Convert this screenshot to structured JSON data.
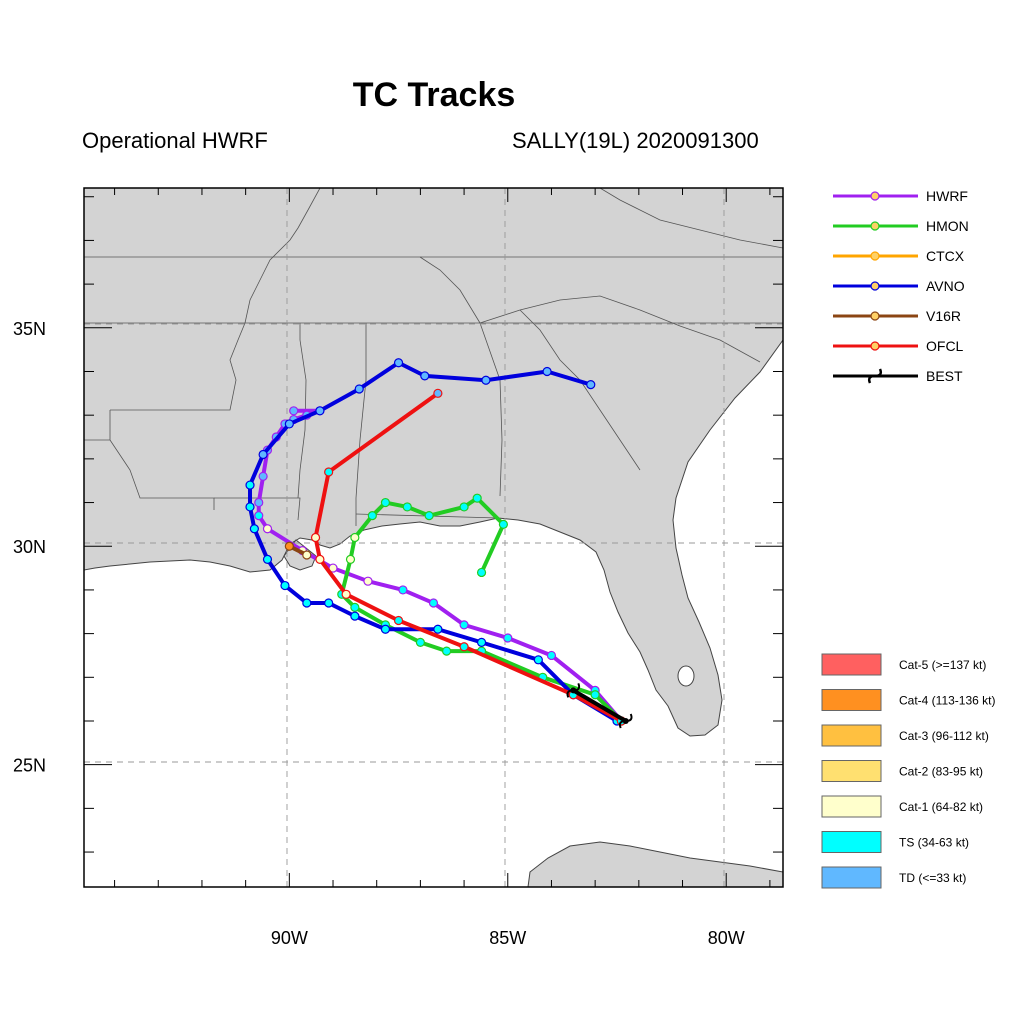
{
  "title": "TC Tracks",
  "subtitle_left": "Operational HWRF",
  "subtitle_right": "SALLY(19L) 2020091300",
  "axes": {
    "x_ticks": [
      {
        "lon": -90,
        "label": "90W"
      },
      {
        "lon": -85,
        "label": "85W"
      },
      {
        "lon": -80,
        "label": "80W"
      }
    ],
    "y_ticks": [
      {
        "lat": 35,
        "label": "35N"
      },
      {
        "lat": 30,
        "label": "30N"
      },
      {
        "lat": 25,
        "label": "25N"
      }
    ],
    "lon_range": [
      -94.7,
      -78.7
    ],
    "lat_range": [
      22.2,
      38.2
    ]
  },
  "colors": {
    "land": "#d3d3d3",
    "ocean": "#ffffff",
    "border": "#555555",
    "grid": "#999999"
  },
  "models": [
    {
      "name": "HWRF",
      "color": "#a020f0"
    },
    {
      "name": "HMON",
      "color": "#22cc22"
    },
    {
      "name": "CTCX",
      "color": "#ffa500"
    },
    {
      "name": "AVNO",
      "color": "#0000dd"
    },
    {
      "name": "V16R",
      "color": "#8b4513"
    },
    {
      "name": "OFCL",
      "color": "#ee1111"
    },
    {
      "name": "BEST",
      "color": "#000000"
    }
  ],
  "categories": [
    {
      "label": "Cat-5 (>=137 kt)",
      "color": "#ff6060"
    },
    {
      "label": "Cat-4 (113-136 kt)",
      "color": "#ff9020"
    },
    {
      "label": "Cat-3 (96-112 kt)",
      "color": "#ffc040"
    },
    {
      "label": "Cat-2 (83-95 kt)",
      "color": "#ffe070"
    },
    {
      "label": "Cat-1 (64-82 kt)",
      "color": "#ffffcc"
    },
    {
      "label": "TS (34-63 kt)",
      "color": "#00ffff"
    },
    {
      "label": "TD (<=33 kt)",
      "color": "#60b8ff"
    }
  ],
  "chart_data": {
    "type": "map-tracks",
    "tracks": [
      {
        "name": "HWRF",
        "points": [
          {
            "lon": -82.4,
            "lat": 26.0,
            "cat": "TS"
          },
          {
            "lon": -83.0,
            "lat": 26.7,
            "cat": "TS"
          },
          {
            "lon": -84.0,
            "lat": 27.5,
            "cat": "TS"
          },
          {
            "lon": -85.0,
            "lat": 27.9,
            "cat": "TS"
          },
          {
            "lon": -86.0,
            "lat": 28.2,
            "cat": "TS"
          },
          {
            "lon": -86.7,
            "lat": 28.7,
            "cat": "TS"
          },
          {
            "lon": -87.4,
            "lat": 29.0,
            "cat": "TS"
          },
          {
            "lon": -88.2,
            "lat": 29.2,
            "cat": "Cat-1"
          },
          {
            "lon": -89.0,
            "lat": 29.5,
            "cat": "Cat-1"
          },
          {
            "lon": -89.7,
            "lat": 29.9,
            "cat": "Cat-1"
          },
          {
            "lon": -90.5,
            "lat": 30.4,
            "cat": "Cat-1"
          },
          {
            "lon": -90.7,
            "lat": 30.7,
            "cat": "TS"
          },
          {
            "lon": -90.7,
            "lat": 31.0,
            "cat": "TD"
          },
          {
            "lon": -90.6,
            "lat": 31.6,
            "cat": "TD"
          },
          {
            "lon": -90.5,
            "lat": 32.2,
            "cat": "TD"
          },
          {
            "lon": -90.3,
            "lat": 32.5,
            "cat": "TD"
          },
          {
            "lon": -90.1,
            "lat": 32.8,
            "cat": "TD"
          },
          {
            "lon": -89.9,
            "lat": 32.9,
            "cat": "TD"
          },
          {
            "lon": -89.6,
            "lat": 33.0,
            "cat": "TD"
          },
          {
            "lon": -89.3,
            "lat": 33.1,
            "cat": "TD"
          },
          {
            "lon": -89.9,
            "lat": 33.1,
            "cat": "TD"
          }
        ]
      },
      {
        "name": "HMON",
        "points": [
          {
            "lon": -82.4,
            "lat": 26.0,
            "cat": "TS"
          },
          {
            "lon": -83.0,
            "lat": 26.6,
            "cat": "TS"
          },
          {
            "lon": -84.2,
            "lat": 27.0,
            "cat": "TS"
          },
          {
            "lon": -85.6,
            "lat": 27.6,
            "cat": "TS"
          },
          {
            "lon": -86.4,
            "lat": 27.6,
            "cat": "TS"
          },
          {
            "lon": -87.0,
            "lat": 27.8,
            "cat": "TS"
          },
          {
            "lon": -87.8,
            "lat": 28.2,
            "cat": "TS"
          },
          {
            "lon": -88.5,
            "lat": 28.6,
            "cat": "TS"
          },
          {
            "lon": -88.8,
            "lat": 28.9,
            "cat": "TS"
          },
          {
            "lon": -88.6,
            "lat": 29.7,
            "cat": "Cat-1"
          },
          {
            "lon": -88.5,
            "lat": 30.2,
            "cat": "Cat-1"
          },
          {
            "lon": -88.1,
            "lat": 30.7,
            "cat": "TS"
          },
          {
            "lon": -87.8,
            "lat": 31.0,
            "cat": "TS"
          },
          {
            "lon": -87.3,
            "lat": 30.9,
            "cat": "TS"
          },
          {
            "lon": -86.8,
            "lat": 30.7,
            "cat": "TS"
          },
          {
            "lon": -86.0,
            "lat": 30.9,
            "cat": "TS"
          },
          {
            "lon": -85.7,
            "lat": 31.1,
            "cat": "TS"
          },
          {
            "lon": -85.1,
            "lat": 30.5,
            "cat": "TS"
          },
          {
            "lon": -85.6,
            "lat": 29.4,
            "cat": "TS"
          }
        ]
      },
      {
        "name": "AVNO",
        "points": [
          {
            "lon": -82.5,
            "lat": 26.0,
            "cat": "TS"
          },
          {
            "lon": -83.5,
            "lat": 26.6,
            "cat": "TS"
          },
          {
            "lon": -84.3,
            "lat": 27.4,
            "cat": "TS"
          },
          {
            "lon": -85.6,
            "lat": 27.8,
            "cat": "TS"
          },
          {
            "lon": -86.6,
            "lat": 28.1,
            "cat": "TS"
          },
          {
            "lon": -87.8,
            "lat": 28.1,
            "cat": "TS"
          },
          {
            "lon": -88.5,
            "lat": 28.4,
            "cat": "TS"
          },
          {
            "lon": -89.1,
            "lat": 28.7,
            "cat": "TS"
          },
          {
            "lon": -89.6,
            "lat": 28.7,
            "cat": "TS"
          },
          {
            "lon": -90.1,
            "lat": 29.1,
            "cat": "TS"
          },
          {
            "lon": -90.5,
            "lat": 29.7,
            "cat": "TS"
          },
          {
            "lon": -90.8,
            "lat": 30.4,
            "cat": "TS"
          },
          {
            "lon": -90.9,
            "lat": 30.9,
            "cat": "TS"
          },
          {
            "lon": -90.9,
            "lat": 31.4,
            "cat": "TS"
          },
          {
            "lon": -90.6,
            "lat": 32.1,
            "cat": "TD"
          },
          {
            "lon": -90.0,
            "lat": 32.8,
            "cat": "TD"
          },
          {
            "lon": -89.3,
            "lat": 33.1,
            "cat": "TD"
          },
          {
            "lon": -88.4,
            "lat": 33.6,
            "cat": "TD"
          },
          {
            "lon": -87.5,
            "lat": 34.2,
            "cat": "TD"
          },
          {
            "lon": -86.9,
            "lat": 33.9,
            "cat": "TD"
          },
          {
            "lon": -85.5,
            "lat": 33.8,
            "cat": "TD"
          },
          {
            "lon": -84.1,
            "lat": 34.0,
            "cat": "TD"
          },
          {
            "lon": -83.1,
            "lat": 33.7,
            "cat": "TD"
          }
        ]
      },
      {
        "name": "OFCL",
        "points": [
          {
            "lon": -82.4,
            "lat": 26.0,
            "cat": "TS"
          },
          {
            "lon": -83.5,
            "lat": 26.6,
            "cat": "TS"
          },
          {
            "lon": -86.0,
            "lat": 27.7,
            "cat": "TS"
          },
          {
            "lon": -87.5,
            "lat": 28.3,
            "cat": "TS"
          },
          {
            "lon": -88.7,
            "lat": 28.9,
            "cat": "Cat-1"
          },
          {
            "lon": -89.3,
            "lat": 29.7,
            "cat": "Cat-1"
          },
          {
            "lon": -89.4,
            "lat": 30.2,
            "cat": "Cat-1"
          },
          {
            "lon": -89.1,
            "lat": 31.7,
            "cat": "TS"
          },
          {
            "lon": -86.6,
            "lat": 33.5,
            "cat": "TD"
          }
        ]
      },
      {
        "name": "V16R",
        "points": [
          {
            "lon": -89.6,
            "lat": 29.8,
            "cat": "Cat-1"
          },
          {
            "lon": -90.0,
            "lat": 30.0,
            "cat": "Cat-4"
          }
        ]
      },
      {
        "name": "BEST",
        "points": [
          {
            "lon": -82.3,
            "lat": 26.0,
            "cat": "TS"
          },
          {
            "lon": -83.5,
            "lat": 26.7,
            "cat": "TS"
          }
        ]
      }
    ]
  }
}
